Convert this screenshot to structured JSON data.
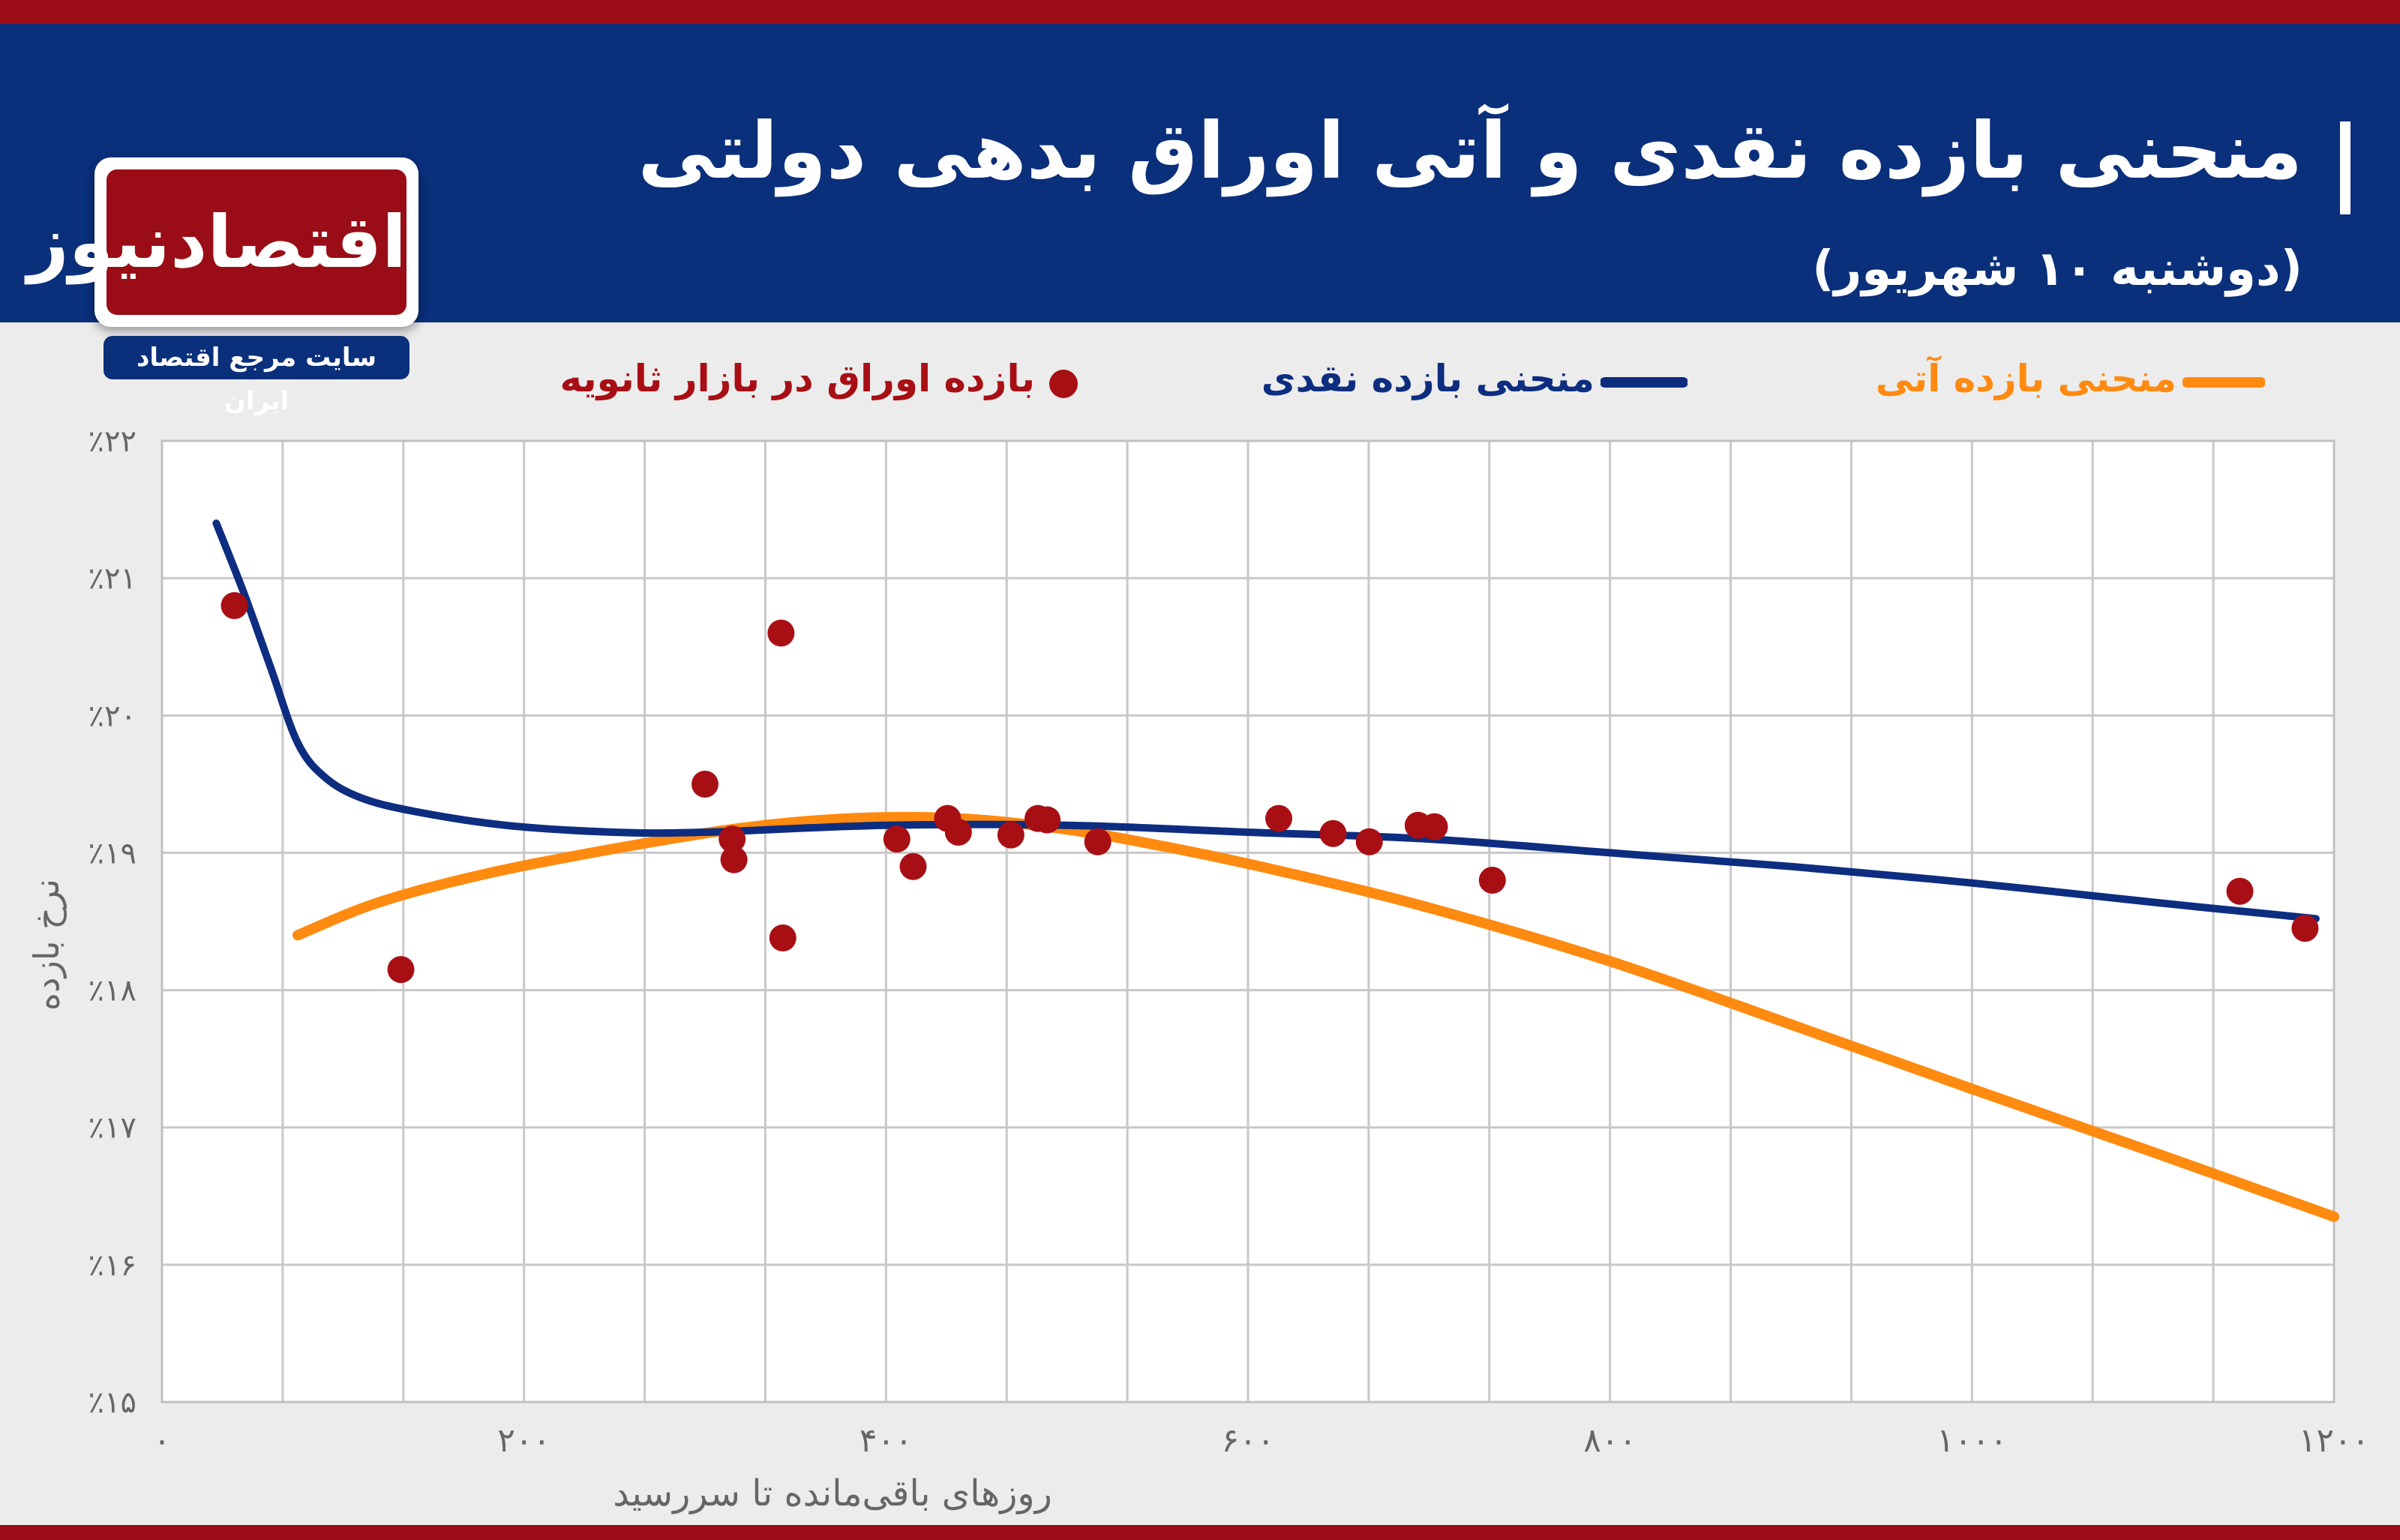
{
  "header": {
    "title": "منحنی بازده نقدی و آتی اوراق بدهی دولتی",
    "subtitle": "(دوشنبه ۱۰ شهریور)"
  },
  "logo": {
    "text": "اقتصادنیوز",
    "tagline": "سایت مرجع اقتصاد ایران"
  },
  "colors": {
    "header_bg": "#0a2f7b",
    "accent_red": "#9a0d16",
    "spot_curve": "#0d2d80",
    "forward_curve": "#ff8a10",
    "points": "#a80f14"
  },
  "chart_data": {
    "type": "line",
    "xlabel": "روزهای باقی‌مانده تا سررسید",
    "ylabel": "نرخ بازده",
    "xlim": [
      0,
      1200
    ],
    "ylim": [
      15,
      22
    ],
    "x_ticks": [
      0,
      200,
      400,
      600,
      800,
      1000,
      1200
    ],
    "x_tick_labels": [
      "۰",
      "۲۰۰",
      "۴۰۰",
      "۶۰۰",
      "۸۰۰",
      "۱۰۰۰",
      "۱۲۰۰"
    ],
    "y_ticks": [
      15,
      16,
      17,
      18,
      19,
      20,
      21,
      22
    ],
    "y_tick_labels": [
      "٪۱۵",
      "٪۱۶",
      "٪۱۷",
      "٪۱۸",
      "٪۱۹",
      "٪۲۰",
      "٪۲۱",
      "٪۲۲"
    ],
    "grid": true,
    "legend_position": "top",
    "legend": [
      {
        "key": "forward",
        "label": "منحنی بازده آتی",
        "marker": "line"
      },
      {
        "key": "spot",
        "label": "منحنی بازده نقدی",
        "marker": "line"
      },
      {
        "key": "points",
        "label": "بازده اوراق در بازار ثانویه",
        "marker": "dot"
      }
    ],
    "series": [
      {
        "key": "spot",
        "x": [
          30,
          45,
          60,
          75,
          90,
          110,
          140,
          190,
          250,
          300,
          400,
          500,
          600,
          700,
          800,
          900,
          1000,
          1100,
          1190
        ],
        "y": [
          21.4,
          20.9,
          20.35,
          19.8,
          19.55,
          19.4,
          19.3,
          19.2,
          19.15,
          19.15,
          19.2,
          19.2,
          19.15,
          19.1,
          19.0,
          18.9,
          18.78,
          18.64,
          18.52
        ]
      },
      {
        "key": "forward",
        "x": [
          75,
          120,
          180,
          250,
          320,
          380,
          440,
          500,
          560,
          620,
          700,
          800,
          900,
          1000,
          1100,
          1200
        ],
        "y": [
          18.4,
          18.64,
          18.85,
          19.03,
          19.18,
          19.25,
          19.25,
          19.17,
          19.03,
          18.86,
          18.6,
          18.21,
          17.75,
          17.28,
          16.82,
          16.35
        ]
      },
      {
        "key": "points",
        "x": [
          40,
          132,
          300,
          315,
          316,
          342,
          343,
          406,
          415,
          434,
          440,
          469,
          484,
          489,
          517,
          617,
          647,
          667,
          694,
          703,
          735,
          1148,
          1184
        ],
        "y": [
          20.8,
          18.15,
          19.5,
          19.1,
          18.95,
          20.6,
          18.38,
          19.1,
          18.9,
          19.25,
          19.15,
          19.13,
          19.25,
          19.24,
          19.08,
          19.25,
          19.14,
          19.08,
          19.2,
          19.19,
          18.8,
          18.72,
          18.45
        ]
      }
    ]
  }
}
